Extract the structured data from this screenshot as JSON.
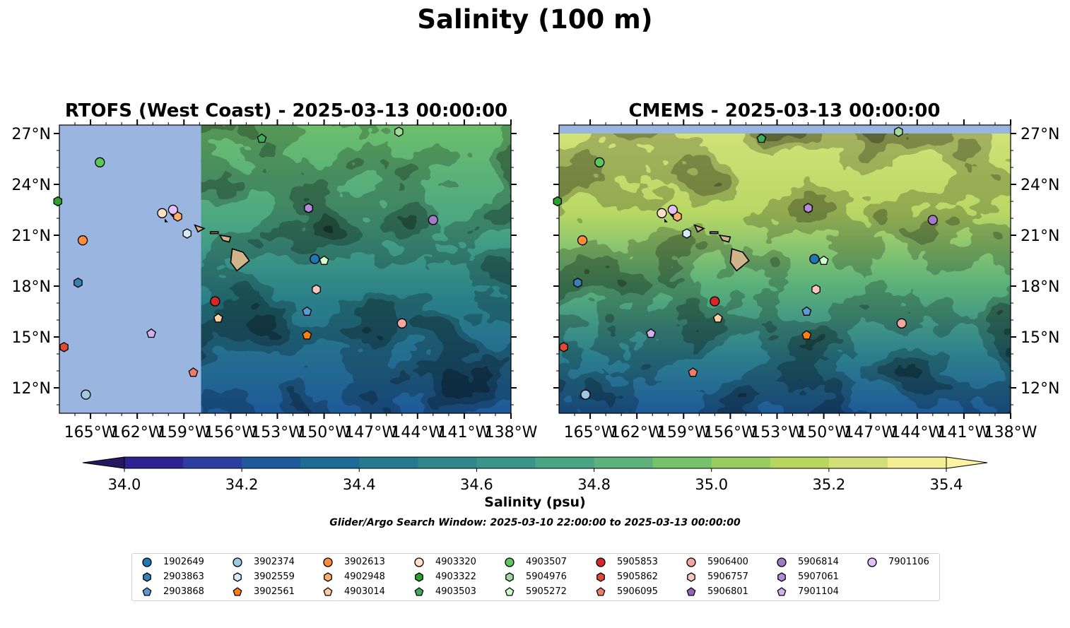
{
  "title": "Salinity (100 m)",
  "chart_data": [
    {
      "type": "heatmap",
      "panel": "left",
      "title": "RTOFS (West Coast) - 2025-03-13 00:00:00",
      "x_ticks": [
        "165°W",
        "162°W",
        "159°W",
        "156°W",
        "153°W",
        "150°W",
        "147°W",
        "144°W",
        "141°W",
        "138°W"
      ],
      "y_ticks": [
        "27°N",
        "24°N",
        "21°N",
        "18°N",
        "15°N",
        "12°N"
      ],
      "xlim": [
        -167,
        -138
      ],
      "ylim": [
        10.5,
        27.5
      ],
      "missing_west_of": -157.9
    },
    {
      "type": "heatmap",
      "panel": "right",
      "title": "CMEMS - 2025-03-13 00:00:00",
      "x_ticks": [
        "165°W",
        "162°W",
        "159°W",
        "156°W",
        "153°W",
        "150°W",
        "147°W",
        "144°W",
        "141°W",
        "138°W"
      ],
      "y_ticks": [
        "27°N",
        "24°N",
        "21°N",
        "18°N",
        "15°N",
        "12°N"
      ],
      "xlim": [
        -167,
        -138
      ],
      "ylim": [
        10.5,
        27.5
      ],
      "missing_north_of": 27.0
    }
  ],
  "colorbar": {
    "label": "Salinity (psu)",
    "ticks": [
      "34.0",
      "34.2",
      "34.4",
      "34.6",
      "34.8",
      "35.0",
      "35.2",
      "35.4"
    ],
    "range": [
      34.0,
      35.4
    ],
    "step": 0.1,
    "colors": [
      "#251760",
      "#2d2290",
      "#2a3fa0",
      "#1f5a9c",
      "#1e6b98",
      "#267a8e",
      "#2f878a",
      "#399589",
      "#47a583",
      "#5cb27a",
      "#75c26a",
      "#98cc5e",
      "#b7d65e",
      "#d2e177",
      "#f4ee95",
      "#fdf3a0"
    ]
  },
  "search_window": "Glider/Argo Search Window: 2025-03-10 22:00:00 to 2025-03-13 00:00:00",
  "land_color": "#d2b48c",
  "nodata_color": "#9ab5df",
  "floats": [
    {
      "id": "1902649",
      "marker": "circle",
      "color": "#1f77b4",
      "lon": -150.6,
      "lat": 19.6
    },
    {
      "id": "2903863",
      "marker": "hexagon",
      "color": "#3b7fb8",
      "lon": -165.8,
      "lat": 18.2
    },
    {
      "id": "2903868",
      "marker": "pentagon",
      "color": "#5b9bd5",
      "lon": -151.1,
      "lat": 16.5
    },
    {
      "id": "3902374",
      "marker": "circle",
      "color": "#9ecae1",
      "lon": -165.3,
      "lat": 11.6
    },
    {
      "id": "3902559",
      "marker": "hexagon",
      "color": "#d6eaf8",
      "lon": -158.8,
      "lat": 21.1
    },
    {
      "id": "3902561",
      "marker": "pentagon",
      "color": "#ff7f0e",
      "lon": -151.1,
      "lat": 15.1
    },
    {
      "id": "3902613",
      "marker": "circle",
      "color": "#fd8d3c",
      "lon": -165.5,
      "lat": 20.7
    },
    {
      "id": "4902948",
      "marker": "hexagon",
      "color": "#fdae6b",
      "lon": -159.4,
      "lat": 22.1
    },
    {
      "id": "4903014",
      "marker": "pentagon",
      "color": "#fdd0a2",
      "lon": -156.8,
      "lat": 16.1
    },
    {
      "id": "4903320",
      "marker": "circle",
      "color": "#fde0c5",
      "lon": -160.4,
      "lat": 22.3
    },
    {
      "id": "4903322",
      "marker": "hexagon",
      "color": "#2ca02c",
      "lon": -167.1,
      "lat": 23.0
    },
    {
      "id": "4903503",
      "marker": "pentagon",
      "color": "#41ab5d",
      "lon": -154.0,
      "lat": 26.7
    },
    {
      "id": "4903507",
      "marker": "circle",
      "color": "#5cc85c",
      "lon": -164.4,
      "lat": 25.3
    },
    {
      "id": "5904976",
      "marker": "hexagon",
      "color": "#a1d99b",
      "lon": -145.2,
      "lat": 27.1
    },
    {
      "id": "5905272",
      "marker": "pentagon",
      "color": "#ccffcc",
      "lon": -150.0,
      "lat": 19.5
    },
    {
      "id": "5905853",
      "marker": "circle",
      "color": "#d62728",
      "lon": -157.0,
      "lat": 17.1
    },
    {
      "id": "5905862",
      "marker": "hexagon",
      "color": "#e34a33",
      "lon": -166.7,
      "lat": 14.4
    },
    {
      "id": "5906095",
      "marker": "pentagon",
      "color": "#f07c6c",
      "lon": -158.4,
      "lat": 12.9
    },
    {
      "id": "5906400",
      "marker": "circle",
      "color": "#f4a6a0",
      "lon": -145.0,
      "lat": 15.8
    },
    {
      "id": "5906757",
      "marker": "hexagon",
      "color": "#fcc5c0",
      "lon": -150.5,
      "lat": 17.8
    },
    {
      "id": "5906801",
      "marker": "pentagon",
      "color": "#9467bd",
      "lon": -151.0,
      "lat": 22.6
    },
    {
      "id": "5906814",
      "marker": "circle",
      "color": "#a07cc5",
      "lon": -143.0,
      "lat": 21.9
    },
    {
      "id": "5907061",
      "marker": "hexagon",
      "color": "#b58bd8",
      "lon": -151.0,
      "lat": 22.6
    },
    {
      "id": "7901104",
      "marker": "pentagon",
      "color": "#d4b0f0",
      "lon": -161.1,
      "lat": 15.2
    },
    {
      "id": "7901106",
      "marker": "circle",
      "color": "#e3c0f7",
      "lon": -159.7,
      "lat": 22.5
    }
  ]
}
